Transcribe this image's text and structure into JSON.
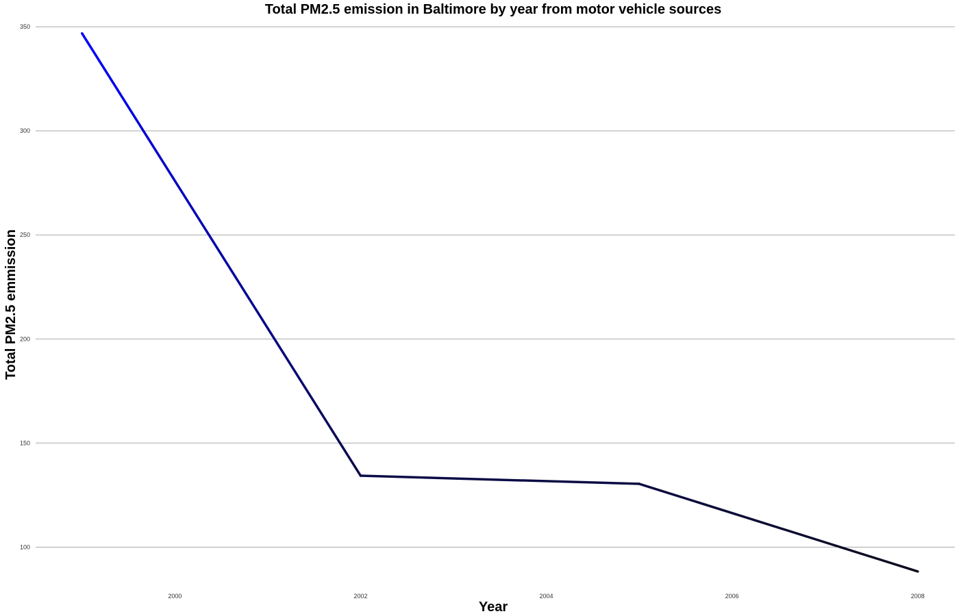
{
  "chart_data": {
    "type": "line",
    "title": "Total PM2.5 emission in Baltimore by year from motor vehicle sources",
    "xlabel": "Year",
    "ylabel": "Total PM2.5 emmission",
    "x": [
      1999,
      2002,
      2005,
      2008
    ],
    "series": [
      {
        "values": [
          346.8,
          134.3,
          130.4,
          88.3
        ]
      }
    ],
    "xlim": [
      1998.5,
      2008.4
    ],
    "ylim": [
      84,
      353
    ],
    "x_ticks": [
      2000,
      2002,
      2004,
      2006,
      2008
    ],
    "y_ticks": [
      100,
      150,
      200,
      250,
      300,
      350
    ],
    "grid": "horizontal major only",
    "legend": "none",
    "colors": {
      "line_high": "#0000ff",
      "line_low": "#0d0d1f",
      "gridline": "#a8a8a8",
      "background": "#ffffff"
    }
  }
}
